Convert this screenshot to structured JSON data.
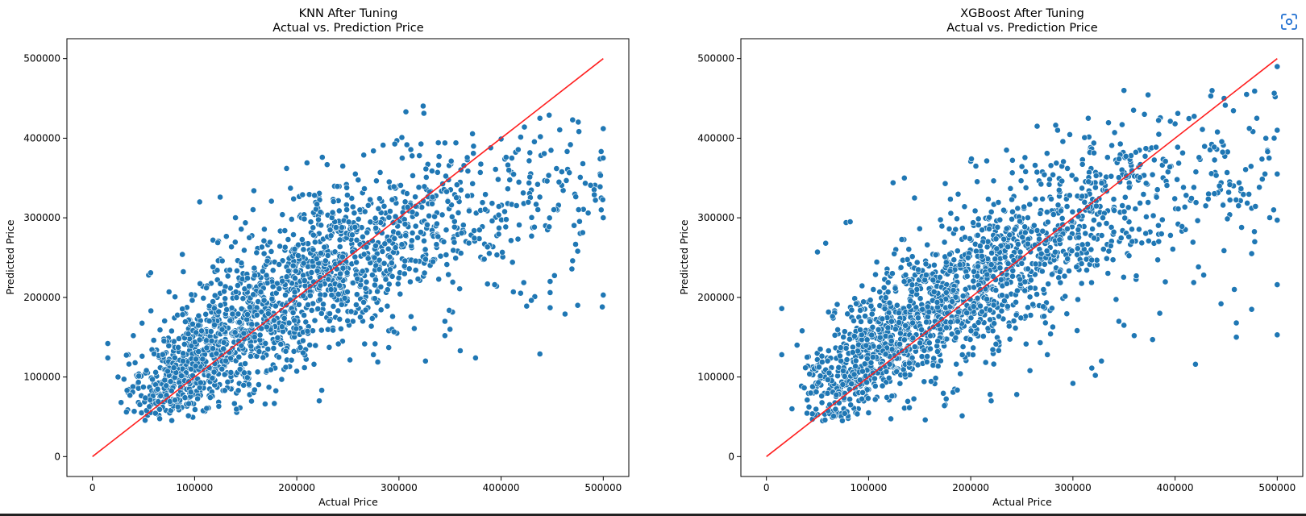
{
  "chart_data": [
    {
      "type": "scatter",
      "title": "KNN After Tuning",
      "subtitle": "Actual vs. Prediction Price",
      "xlabel": "Actual Price",
      "ylabel": "Predicted Price",
      "xlim": [
        -25000,
        525000
      ],
      "ylim": [
        -25000,
        525000
      ],
      "xticks": [
        0,
        100000,
        200000,
        300000,
        400000,
        500000
      ],
      "yticks": [
        0,
        100000,
        200000,
        300000,
        400000,
        500000
      ],
      "xtick_labels": [
        "0",
        "100000",
        "200000",
        "300000",
        "400000",
        "500000"
      ],
      "ytick_labels": [
        "0",
        "100000",
        "200000",
        "300000",
        "400000",
        "500000"
      ],
      "grid": false,
      "reference_line": {
        "from": [
          0,
          0
        ],
        "to": [
          500000,
          500000
        ],
        "color": "#ff2020"
      },
      "series": [
        {
          "color": "#1f77b4",
          "points": [
            [
              15000,
              142000
            ],
            [
              15000,
              124000
            ],
            [
              25000,
              100000
            ],
            [
              28000,
              68000
            ],
            [
              35000,
              128000
            ],
            [
              40000,
              152000
            ],
            [
              45000,
              68000
            ],
            [
              55000,
              228000
            ],
            [
              57000,
              231000
            ],
            [
              75000,
              207000
            ],
            [
              88000,
              254000
            ],
            [
              105000,
              320000
            ],
            [
              118000,
              272000
            ],
            [
              125000,
              326000
            ],
            [
              140000,
              300000
            ],
            [
              158000,
              334000
            ],
            [
              168000,
              255000
            ],
            [
              190000,
              362000
            ],
            [
              210000,
              369000
            ],
            [
              225000,
              376000
            ],
            [
              237000,
              340000
            ],
            [
              245000,
              365000
            ],
            [
              275000,
              384000
            ],
            [
              298000,
              397000
            ],
            [
              320000,
              378000
            ],
            [
              345000,
              394000
            ],
            [
              373000,
              390000
            ],
            [
              400000,
              399000
            ],
            [
              438000,
              425000
            ],
            [
              447000,
              429000
            ],
            [
              470000,
              423000
            ],
            [
              500000,
              412000
            ],
            [
              480000,
              368000
            ],
            [
              497000,
              374000
            ],
            [
              455000,
              310000
            ],
            [
              475000,
              258000
            ],
            [
              470000,
              246000
            ],
            [
              448000,
              220000
            ],
            [
              448000,
              206000
            ],
            [
              433000,
              201000
            ],
            [
              412000,
              207000
            ],
            [
              425000,
              189000
            ],
            [
              498000,
              325000
            ],
            [
              498000,
              310000
            ],
            [
              500000,
              300000
            ],
            [
              500000,
              203000
            ],
            [
              499000,
              188000
            ],
            [
              475000,
              190000
            ],
            [
              448000,
              187000
            ],
            [
              438000,
              129000
            ],
            [
              375000,
              124000
            ],
            [
              326000,
              120000
            ],
            [
              360000,
              133000
            ],
            [
              345000,
              170000
            ],
            [
              350000,
              160000
            ],
            [
              345000,
              152000
            ],
            [
              315000,
              161000
            ],
            [
              290000,
              158000
            ],
            [
              298000,
              155000
            ],
            [
              290000,
              137000
            ],
            [
              275000,
              128000
            ],
            [
              255000,
              170000
            ],
            [
              222000,
              70000
            ],
            [
              110000,
              57000
            ],
            [
              83000,
              67000
            ],
            [
              79000,
              72000
            ],
            [
              48000,
              55000
            ],
            [
              54000,
              52000
            ],
            [
              65000,
              52000
            ],
            [
              72000,
              58000
            ]
          ],
          "clusters": [
            {
              "center": [
                78000,
                90000
              ],
              "count": 220,
              "spread": [
                23000,
                25000
              ]
            },
            {
              "center": [
                118000,
                130000
              ],
              "count": 330,
              "spread": [
                27000,
                33000
              ]
            },
            {
              "center": [
                168000,
                180000
              ],
              "count": 360,
              "spread": [
                33000,
                40000
              ]
            },
            {
              "center": [
                218000,
                225000
              ],
              "count": 320,
              "spread": [
                32000,
                42000
              ]
            },
            {
              "center": [
                262000,
                268000
              ],
              "count": 240,
              "spread": [
                32000,
                45000
              ]
            },
            {
              "center": [
                318000,
                295000
              ],
              "count": 180,
              "spread": [
                35000,
                45000
              ]
            },
            {
              "center": [
                378000,
                315000
              ],
              "count": 110,
              "spread": [
                40000,
                50000
              ]
            },
            {
              "center": [
                448000,
                332000
              ],
              "count": 70,
              "spread": [
                32000,
                40000
              ]
            }
          ]
        }
      ]
    },
    {
      "type": "scatter",
      "title": "XGBoost After Tuning",
      "subtitle": "Actual vs. Prediction Price",
      "xlabel": "Actual Price",
      "ylabel": "Predicted Price",
      "xlim": [
        -25000,
        525000
      ],
      "ylim": [
        -25000,
        525000
      ],
      "xticks": [
        0,
        100000,
        200000,
        300000,
        400000,
        500000
      ],
      "yticks": [
        0,
        100000,
        200000,
        300000,
        400000,
        500000
      ],
      "xtick_labels": [
        "0",
        "100000",
        "200000",
        "300000",
        "400000",
        "500000"
      ],
      "ytick_labels": [
        "0",
        "100000",
        "200000",
        "300000",
        "400000",
        "500000"
      ],
      "grid": false,
      "reference_line": {
        "from": [
          0,
          0
        ],
        "to": [
          500000,
          500000
        ],
        "color": "#ff2020"
      },
      "series": [
        {
          "color": "#1f77b4",
          "points": [
            [
              15000,
              186000
            ],
            [
              15000,
              128000
            ],
            [
              25000,
              60000
            ],
            [
              30000,
              140000
            ],
            [
              35000,
              158000
            ],
            [
              50000,
              257000
            ],
            [
              58000,
              268000
            ],
            [
              78000,
              294000
            ],
            [
              82000,
              295000
            ],
            [
              124000,
              344000
            ],
            [
              135000,
              350000
            ],
            [
              145000,
              325000
            ],
            [
              175000,
              343000
            ],
            [
              200000,
              371000
            ],
            [
              205000,
              365000
            ],
            [
              235000,
              385000
            ],
            [
              265000,
              415000
            ],
            [
              285000,
              410000
            ],
            [
              315000,
              425000
            ],
            [
              350000,
              460000
            ],
            [
              370000,
              430000
            ],
            [
              400000,
              418000
            ],
            [
              435000,
              453000
            ],
            [
              448000,
              450000
            ],
            [
              470000,
              455000
            ],
            [
              480000,
              425000
            ],
            [
              500000,
              490000
            ],
            [
              498000,
              452000
            ],
            [
              500000,
              410000
            ],
            [
              497000,
              400000
            ],
            [
              492000,
              375000
            ],
            [
              488000,
              355000
            ],
            [
              500000,
              355000
            ],
            [
              475000,
              312000
            ],
            [
              475000,
              255000
            ],
            [
              478000,
              270000
            ],
            [
              500000,
              297000
            ],
            [
              500000,
              216000
            ],
            [
              475000,
              185000
            ],
            [
              500000,
              153000
            ],
            [
              460000,
              150000
            ],
            [
              460000,
              168000
            ],
            [
              458000,
              210000
            ],
            [
              445000,
              192000
            ],
            [
              428000,
              228000
            ],
            [
              420000,
              116000
            ],
            [
              385000,
              180000
            ],
            [
              378000,
              147000
            ],
            [
              360000,
              152000
            ],
            [
              350000,
              165000
            ],
            [
              345000,
              170000
            ],
            [
              328000,
              120000
            ],
            [
              322000,
              102000
            ],
            [
              300000,
              92000
            ],
            [
              275000,
              128000
            ],
            [
              268000,
              143000
            ],
            [
              258000,
              108000
            ],
            [
              245000,
              78000
            ],
            [
              220000,
              70000
            ],
            [
              219000,
              78000
            ],
            [
              175000,
              65000
            ],
            [
              140000,
              62000
            ],
            [
              100000,
              55000
            ],
            [
              90000,
              60000
            ],
            [
              80000,
              48000
            ],
            [
              65000,
              55000
            ],
            [
              45000,
              47000
            ],
            [
              55000,
              45000
            ],
            [
              440000,
              330000
            ],
            [
              430000,
              315000
            ],
            [
              402000,
              348000
            ]
          ],
          "clusters": [
            {
              "center": [
                70000,
                95000
              ],
              "count": 200,
              "spread": [
                20000,
                25000
              ]
            },
            {
              "center": [
                115000,
                140000
              ],
              "count": 320,
              "spread": [
                26000,
                32000
              ]
            },
            {
              "center": [
                162000,
                180000
              ],
              "count": 360,
              "spread": [
                30000,
                38000
              ]
            },
            {
              "center": [
                210000,
                225000
              ],
              "count": 320,
              "spread": [
                32000,
                42000
              ]
            },
            {
              "center": [
                258000,
                265000
              ],
              "count": 240,
              "spread": [
                32000,
                45000
              ]
            },
            {
              "center": [
                315000,
                310000
              ],
              "count": 180,
              "spread": [
                34000,
                48000
              ]
            },
            {
              "center": [
                375000,
                340000
              ],
              "count": 110,
              "spread": [
                40000,
                50000
              ]
            },
            {
              "center": [
                448000,
                345000
              ],
              "count": 70,
              "spread": [
                32000,
                45000
              ]
            }
          ]
        }
      ]
    }
  ],
  "toolbar": {
    "focus_icon": "focus-screenshot-icon"
  }
}
